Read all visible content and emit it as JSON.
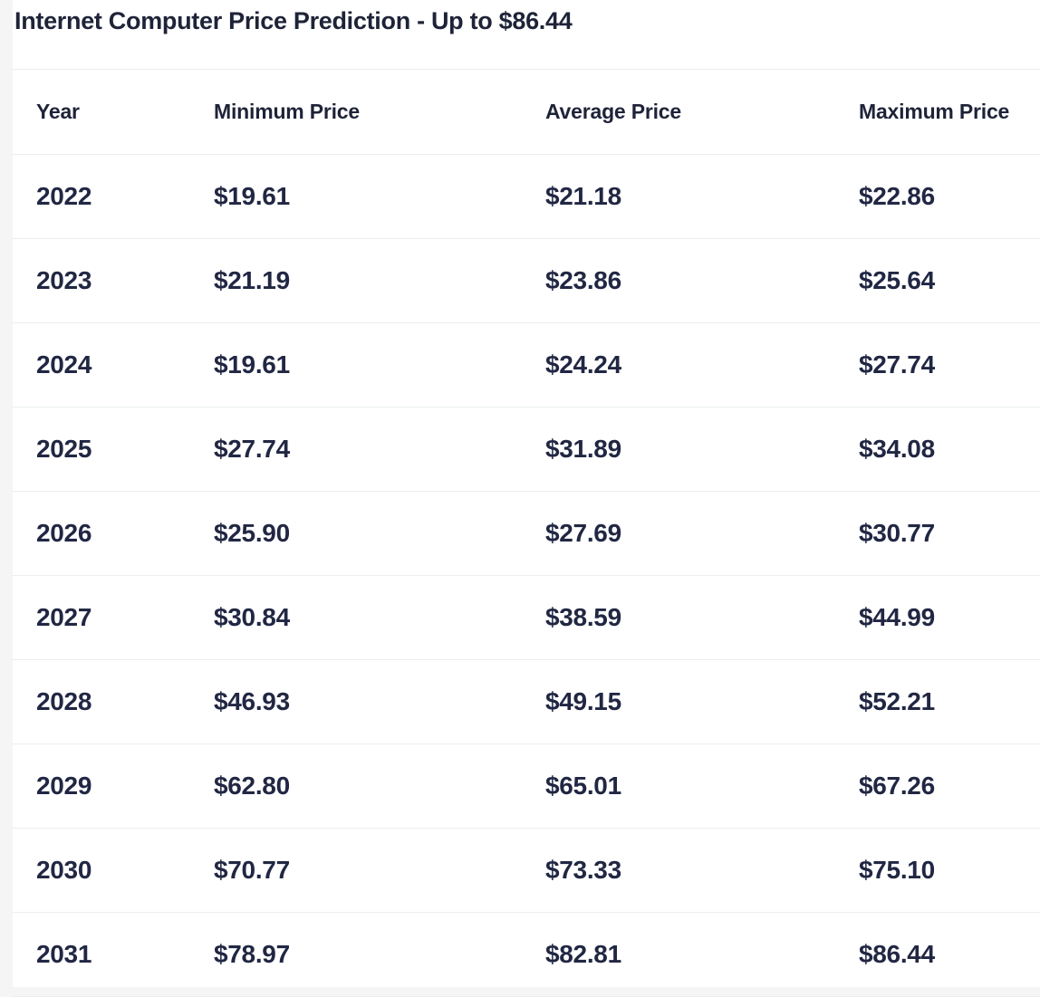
{
  "page": {
    "title": "Internet Computer Price Prediction - Up to $86.44"
  },
  "table": {
    "columns": [
      "Year",
      "Minimum Price",
      "Average Price",
      "Maximum Price"
    ],
    "rows": [
      {
        "year": "2022",
        "min": "$19.61",
        "avg": "$21.18",
        "max": "$22.86"
      },
      {
        "year": "2023",
        "min": "$21.19",
        "avg": "$23.86",
        "max": "$25.64"
      },
      {
        "year": "2024",
        "min": "$19.61",
        "avg": "$24.24",
        "max": "$27.74"
      },
      {
        "year": "2025",
        "min": "$27.74",
        "avg": "$31.89",
        "max": "$34.08"
      },
      {
        "year": "2026",
        "min": "$25.90",
        "avg": "$27.69",
        "max": "$30.77"
      },
      {
        "year": "2027",
        "min": "$30.84",
        "avg": "$38.59",
        "max": "$44.99"
      },
      {
        "year": "2028",
        "min": "$46.93",
        "avg": "$49.15",
        "max": "$52.21"
      },
      {
        "year": "2029",
        "min": "$62.80",
        "avg": "$65.01",
        "max": "$67.26"
      },
      {
        "year": "2030",
        "min": "$70.77",
        "avg": "$73.33",
        "max": "$75.10"
      },
      {
        "year": "2031",
        "min": "$78.97",
        "avg": "$82.81",
        "max": "$86.44"
      }
    ]
  },
  "colors": {
    "text": "#212743",
    "title_text": "#1e2338",
    "divider": "#eaeef0",
    "page_background": "#f5f5f6",
    "card_background": "#ffffff"
  },
  "chart_data": {
    "type": "table",
    "title": "Internet Computer Price Prediction - Up to $86.44",
    "columns": [
      "Year",
      "Minimum Price",
      "Average Price",
      "Maximum Price"
    ],
    "categories": [
      "2022",
      "2023",
      "2024",
      "2025",
      "2026",
      "2027",
      "2028",
      "2029",
      "2030",
      "2031"
    ],
    "series": [
      {
        "name": "Minimum Price",
        "values": [
          19.61,
          21.19,
          19.61,
          27.74,
          25.9,
          30.84,
          46.93,
          62.8,
          70.77,
          78.97
        ]
      },
      {
        "name": "Average Price",
        "values": [
          21.18,
          23.86,
          24.24,
          31.89,
          27.69,
          38.59,
          49.15,
          65.01,
          73.33,
          82.81
        ]
      },
      {
        "name": "Maximum Price",
        "values": [
          22.86,
          25.64,
          27.74,
          34.08,
          30.77,
          44.99,
          52.21,
          67.26,
          75.1,
          86.44
        ]
      }
    ]
  }
}
